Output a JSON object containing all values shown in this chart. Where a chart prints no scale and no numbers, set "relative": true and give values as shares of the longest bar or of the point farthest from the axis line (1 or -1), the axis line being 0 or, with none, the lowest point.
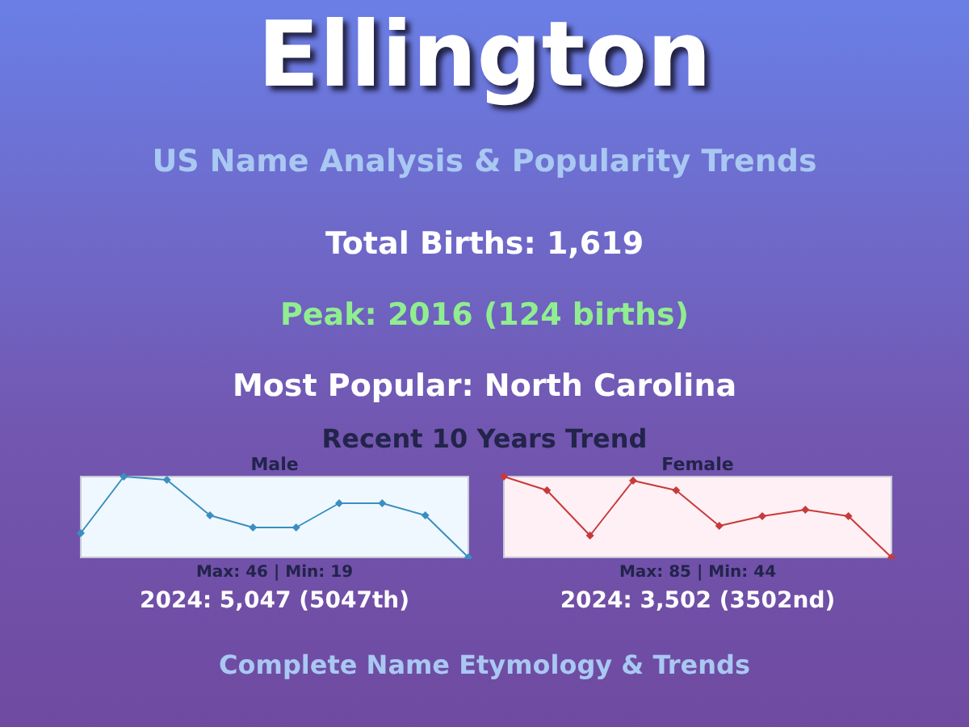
{
  "chart_data": [
    {
      "type": "other",
      "title": "Ellington",
      "subtitle": "US Name Analysis & Popularity Trends",
      "annotations": [
        "Total Births: 1,619",
        "Peak: 2016 (124 births)",
        "Most Popular: North Carolina",
        "Recent 10 Years Trend",
        "Complete Name Etymology & Trends"
      ]
    },
    {
      "type": "line",
      "title": "Male",
      "categories": [
        null,
        null,
        null,
        null,
        null,
        null,
        null,
        null,
        null,
        null
      ],
      "values": [
        0.3,
        1,
        0.96,
        0.52,
        0.37,
        0.37,
        0.67,
        0.67,
        0.52,
        0
      ],
      "color": "#3a8fc0",
      "relative": true,
      "tick_labels": false,
      "marker": "diamond",
      "annotations": [
        "Max: 46 | Min: 19",
        "2024: 5,047 (5047th)"
      ]
    },
    {
      "type": "line",
      "title": "Female",
      "categories": [
        null,
        null,
        null,
        null,
        null,
        null,
        null,
        null,
        null,
        null
      ],
      "values": [
        1,
        0.83,
        0.27,
        0.95,
        0.83,
        0.39,
        0.51,
        0.59,
        0.51,
        0
      ],
      "color": "#c83a3a",
      "relative": true,
      "tick_labels": false,
      "marker": "diamond",
      "annotations": [
        "Max: 85 | Min: 44",
        "2024: 3,502 (3502nd)"
      ]
    }
  ]
}
